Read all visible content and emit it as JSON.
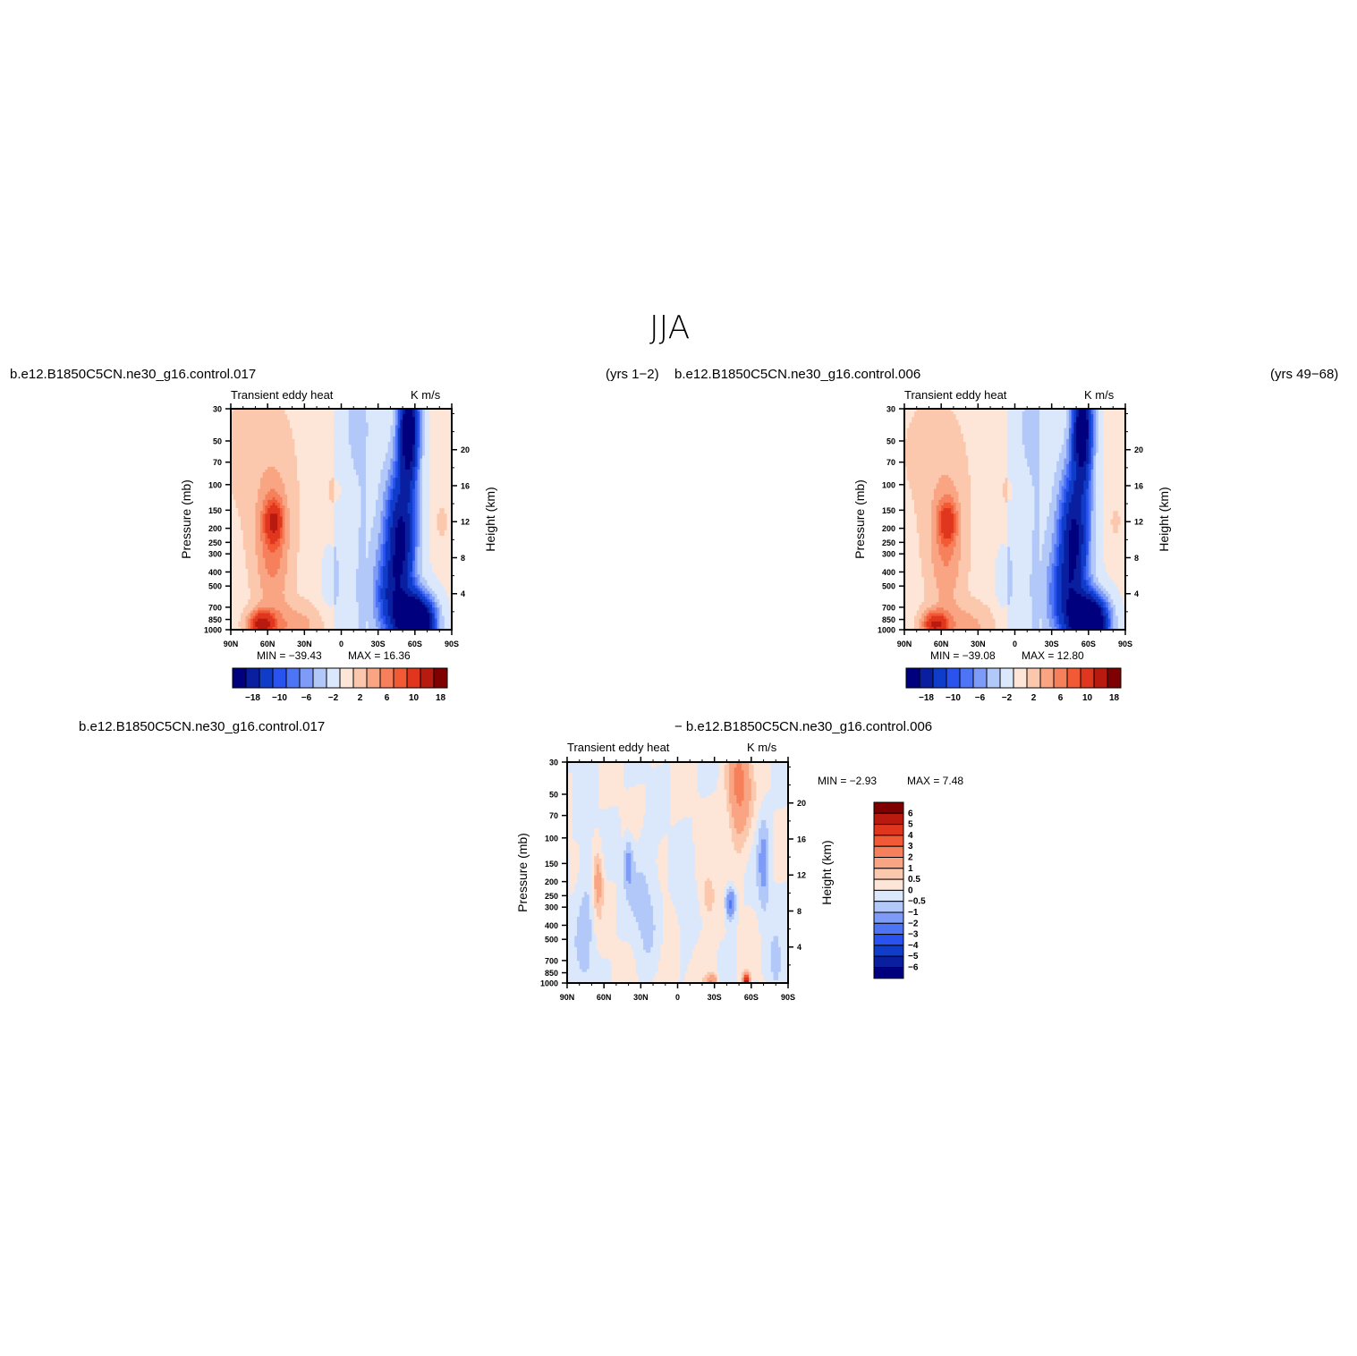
{
  "figure": {
    "title": "JJA",
    "case_left": "b.e12.B1850C5CN.ne30_g16.control.017",
    "years_left": "(yrs  1−2)",
    "case_right": "b.e12.B1850C5CN.ne30_g16.control.006",
    "years_right": "(yrs  49−68)",
    "diff_left": "b.e12.B1850C5CN.ne30_g16.control.017",
    "diff_right": "−  b.e12.B1850C5CN.ne30_g16.control.006"
  },
  "chart_data": [
    {
      "type": "heatmap",
      "panel": "left",
      "title": "Transient  eddy  heat",
      "units": "K  m/s",
      "xlabel": "",
      "ylabel": "Pressure  (mb)",
      "ylabel_right": "Height  (km)",
      "x_ticks": [
        "90N",
        "60N",
        "30N",
        "0",
        "30S",
        "60S",
        "90S"
      ],
      "xlim": [
        90,
        -90
      ],
      "y_ticks": [
        "30",
        "50",
        "70",
        "100",
        "150",
        "200",
        "250",
        "300",
        "400",
        "500",
        "700",
        "850",
        "1000"
      ],
      "ylim_mb": [
        1000,
        30
      ],
      "y_scale": "log",
      "height_ticks": [
        "20",
        "16",
        "12",
        "8",
        "4"
      ],
      "min_label": "MIN  =  −39.43",
      "max_label": "MAX  =   16.36",
      "min": -39.43,
      "max": 16.36,
      "levels_labels": [
        "−18",
        "−10",
        "−6",
        "−2",
        "2",
        "6",
        "10",
        "18"
      ],
      "colorbar": "horizontal"
    },
    {
      "type": "heatmap",
      "panel": "right",
      "title": "Transient  eddy  heat",
      "units": "K  m/s",
      "xlabel": "",
      "ylabel": "Pressure  (mb)",
      "ylabel_right": "Height  (km)",
      "x_ticks": [
        "90N",
        "60N",
        "30N",
        "0",
        "30S",
        "60S",
        "90S"
      ],
      "xlim": [
        90,
        -90
      ],
      "y_ticks": [
        "30",
        "50",
        "70",
        "100",
        "150",
        "200",
        "250",
        "300",
        "400",
        "500",
        "700",
        "850",
        "1000"
      ],
      "ylim_mb": [
        1000,
        30
      ],
      "y_scale": "log",
      "height_ticks": [
        "20",
        "16",
        "12",
        "8",
        "4"
      ],
      "min_label": "MIN  =  −39.08",
      "max_label": "MAX  =   12.80",
      "min": -39.08,
      "max": 12.8,
      "levels_labels": [
        "−18",
        "−10",
        "−6",
        "−2",
        "2",
        "6",
        "10",
        "18"
      ],
      "colorbar": "horizontal"
    },
    {
      "type": "heatmap",
      "panel": "difference",
      "title": "Transient  eddy  heat",
      "units": "K  m/s",
      "xlabel": "",
      "ylabel": "Pressure  (mb)",
      "ylabel_right": "Height  (km)",
      "x_ticks": [
        "90N",
        "60N",
        "30N",
        "0",
        "30S",
        "60S",
        "90S"
      ],
      "xlim": [
        90,
        -90
      ],
      "y_ticks": [
        "30",
        "50",
        "70",
        "100",
        "150",
        "200",
        "250",
        "300",
        "400",
        "500",
        "700",
        "850",
        "1000"
      ],
      "ylim_mb": [
        1000,
        30
      ],
      "y_scale": "log",
      "height_ticks": [
        "20",
        "16",
        "12",
        "8",
        "4"
      ],
      "min_label": "MIN  =    −2.93",
      "max_label": "MAX  =     7.48",
      "min": -2.93,
      "max": 7.48,
      "levels_labels": [
        "6",
        "5",
        "4",
        "3",
        "2",
        "1",
        "0.5",
        "0",
        "−0.5",
        "−1",
        "−2",
        "−3",
        "−4",
        "−5",
        "−6"
      ],
      "colorbar": "vertical"
    }
  ],
  "colors": {
    "main_scale": [
      "#00007f",
      "#0a1ea0",
      "#0f3cc8",
      "#2a52ef",
      "#4d74f5",
      "#7e9cf7",
      "#b2c8f8",
      "#dbe8fb",
      "#fde6d7",
      "#fcc8ad",
      "#f9a583",
      "#f6805b",
      "#f25a36",
      "#e0361e",
      "#b81a10",
      "#7e0000"
    ],
    "diff_scale": [
      "#7e0000",
      "#b81a10",
      "#e0361e",
      "#f25a36",
      "#f6805b",
      "#f9a583",
      "#fcc8ad",
      "#fde6d7",
      "#dbe8fb",
      "#b2c8f8",
      "#7e9cf7",
      "#4d74f5",
      "#2a52ef",
      "#0f3cc8",
      "#0a1ea0",
      "#00007f"
    ]
  }
}
